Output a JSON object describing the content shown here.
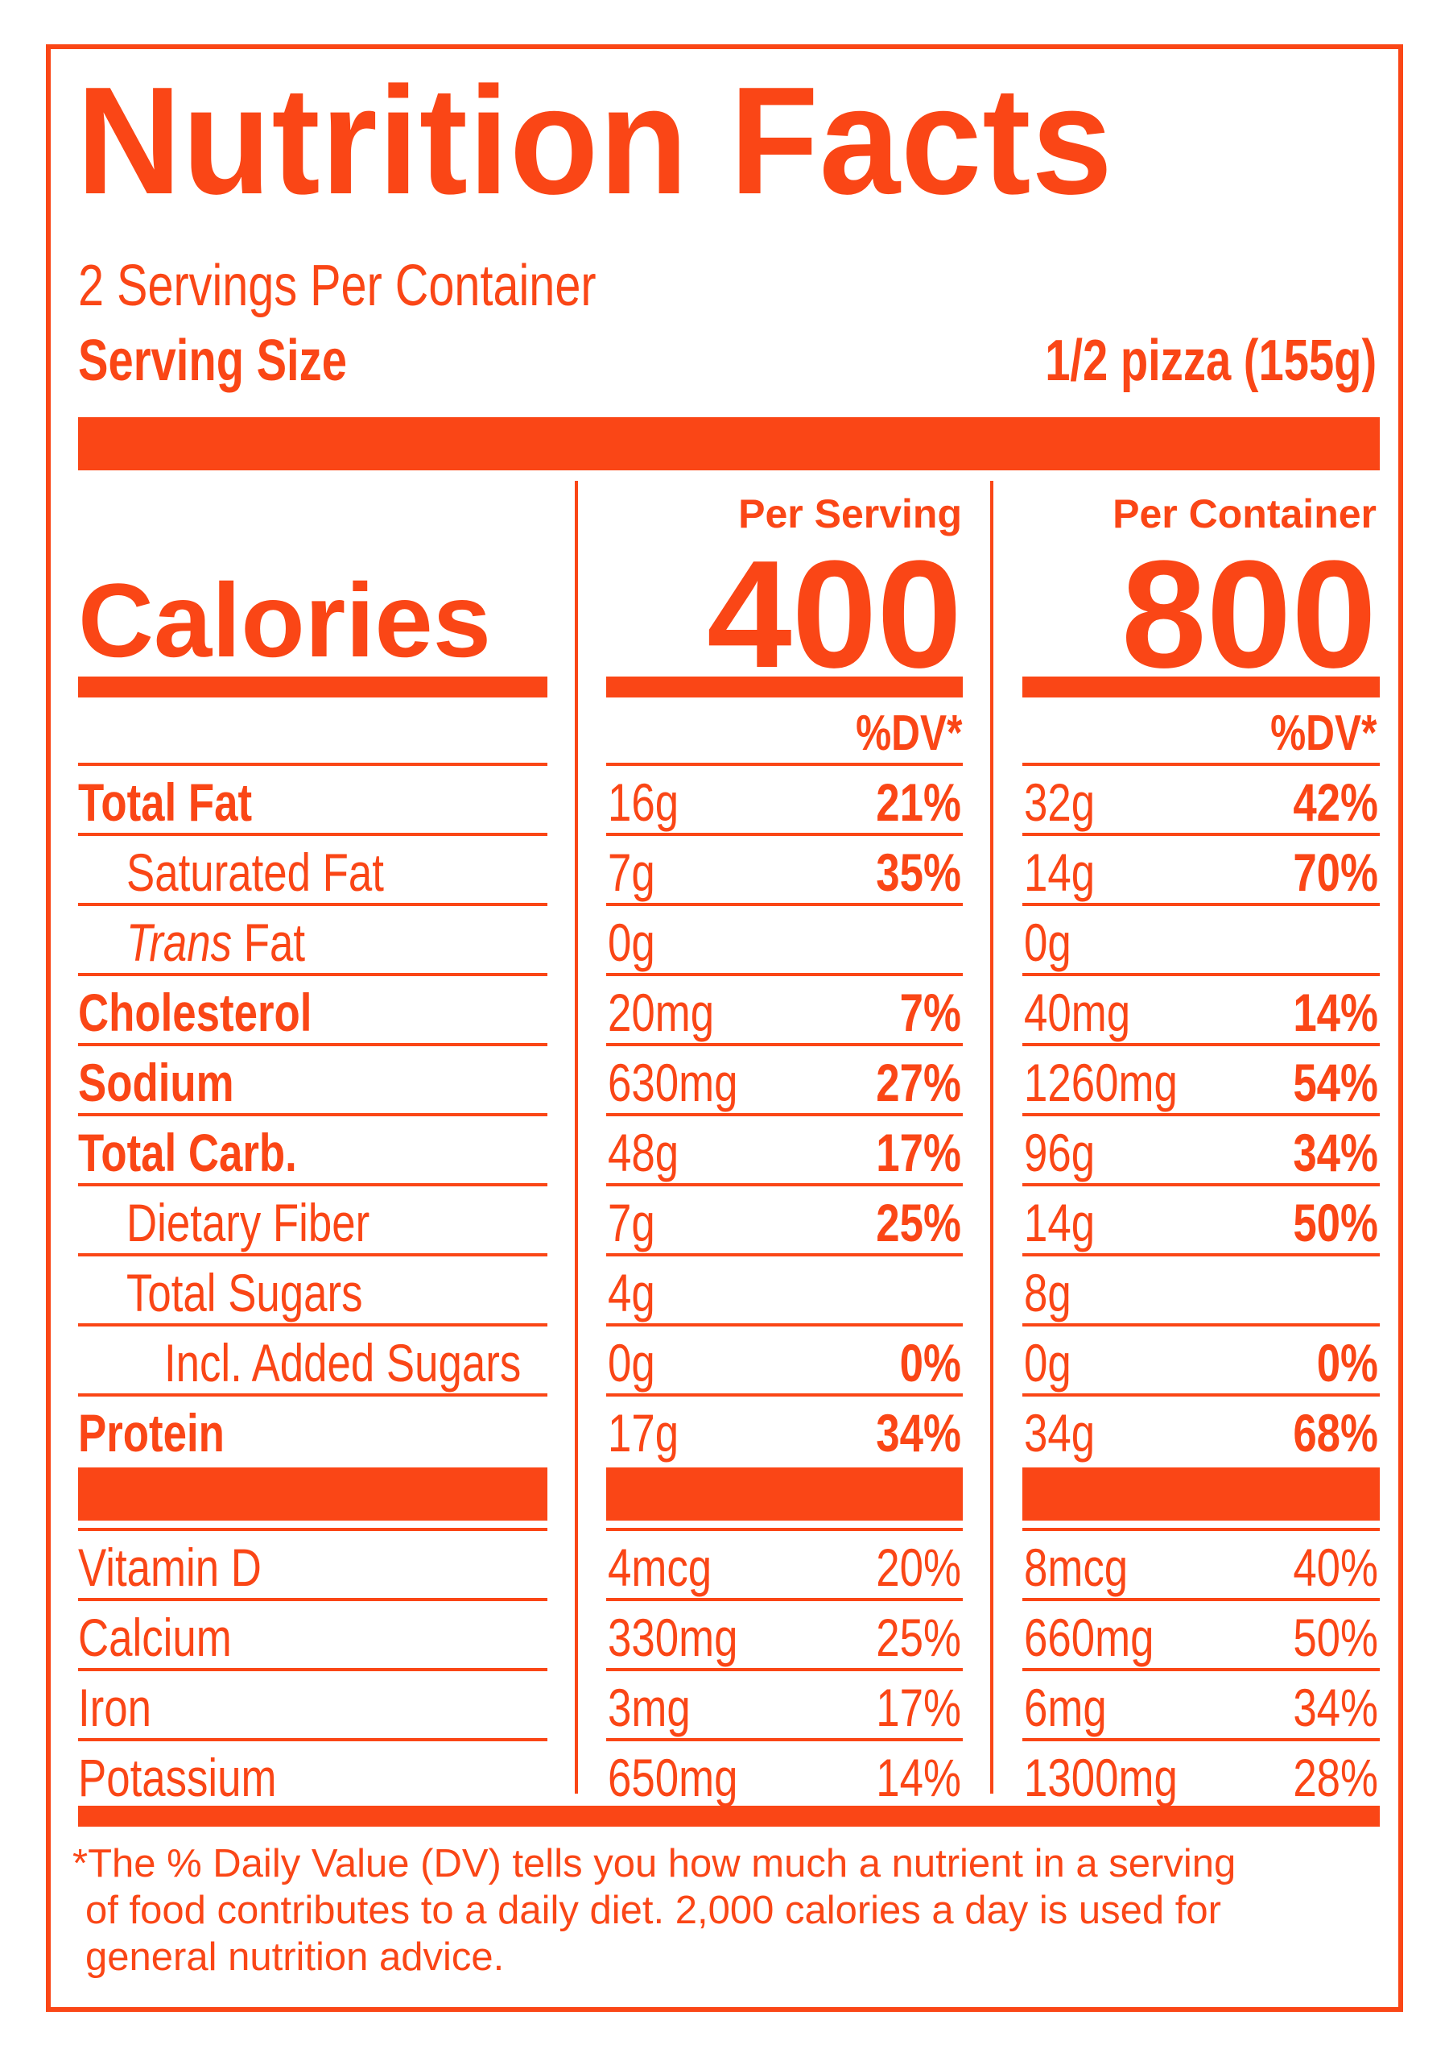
{
  "title": "Nutrition Facts",
  "servings_per_container": "2 Servings Per Container",
  "serving_size": {
    "label": "Serving Size",
    "value": "1/2 pizza (155g)"
  },
  "calories": {
    "label": "Calories",
    "per_serving_label": "Per Serving",
    "per_serving_value": "400",
    "per_container_label": "Per Container",
    "per_container_value": "800"
  },
  "dv_header": "%DV*",
  "nutrients": [
    {
      "label": "Total Fat",
      "bold": true,
      "indent": 0,
      "serving_amount": "16g",
      "serving_dv": "21%",
      "container_amount": "32g",
      "container_dv": "42%"
    },
    {
      "label": "Saturated Fat",
      "bold": false,
      "indent": 1,
      "serving_amount": "7g",
      "serving_dv": "35%",
      "container_amount": "14g",
      "container_dv": "70%"
    },
    {
      "label_italic": "Trans",
      "label": " Fat",
      "bold": false,
      "indent": 1,
      "serving_amount": "0g",
      "serving_dv": "",
      "container_amount": "0g",
      "container_dv": ""
    },
    {
      "label": "Cholesterol",
      "bold": true,
      "indent": 0,
      "serving_amount": "20mg",
      "serving_dv": "7%",
      "container_amount": "40mg",
      "container_dv": "14%"
    },
    {
      "label": "Sodium",
      "bold": true,
      "indent": 0,
      "serving_amount": "630mg",
      "serving_dv": "27%",
      "container_amount": "1260mg",
      "container_dv": "54%"
    },
    {
      "label": "Total Carb.",
      "bold": true,
      "indent": 0,
      "serving_amount": "48g",
      "serving_dv": "17%",
      "container_amount": "96g",
      "container_dv": "34%"
    },
    {
      "label": "Dietary Fiber",
      "bold": false,
      "indent": 1,
      "serving_amount": "7g",
      "serving_dv": "25%",
      "container_amount": "14g",
      "container_dv": "50%"
    },
    {
      "label": "Total Sugars",
      "bold": false,
      "indent": 1,
      "serving_amount": "4g",
      "serving_dv": "",
      "container_amount": "8g",
      "container_dv": ""
    },
    {
      "label": "Incl. Added Sugars",
      "bold": false,
      "indent": 2,
      "serving_amount": "0g",
      "serving_dv": "0%",
      "container_amount": "0g",
      "container_dv": "0%"
    },
    {
      "label": "Protein",
      "bold": true,
      "indent": 0,
      "serving_amount": "17g",
      "serving_dv": "34%",
      "container_amount": "34g",
      "container_dv": "68%"
    }
  ],
  "vitamins": [
    {
      "label": "Vitamin D",
      "serving_amount": "4mcg",
      "serving_dv": "20%",
      "container_amount": "8mcg",
      "container_dv": "40%"
    },
    {
      "label": "Calcium",
      "serving_amount": "330mg",
      "serving_dv": "25%",
      "container_amount": "660mg",
      "container_dv": "50%"
    },
    {
      "label": "Iron",
      "serving_amount": "3mg",
      "serving_dv": "17%",
      "container_amount": "6mg",
      "container_dv": "34%"
    },
    {
      "label": "Potassium",
      "serving_amount": "650mg",
      "serving_dv": "14%",
      "container_amount": "1300mg",
      "container_dv": "28%"
    }
  ],
  "footnote": [
    "*The % Daily Value (DV) tells you how much a nutrient in a serving",
    "of food contributes to a daily diet. 2,000 calories a day is used for",
    "general nutrition advice."
  ],
  "colors": {
    "accent": "#fa4616",
    "background": "#ffffff"
  }
}
